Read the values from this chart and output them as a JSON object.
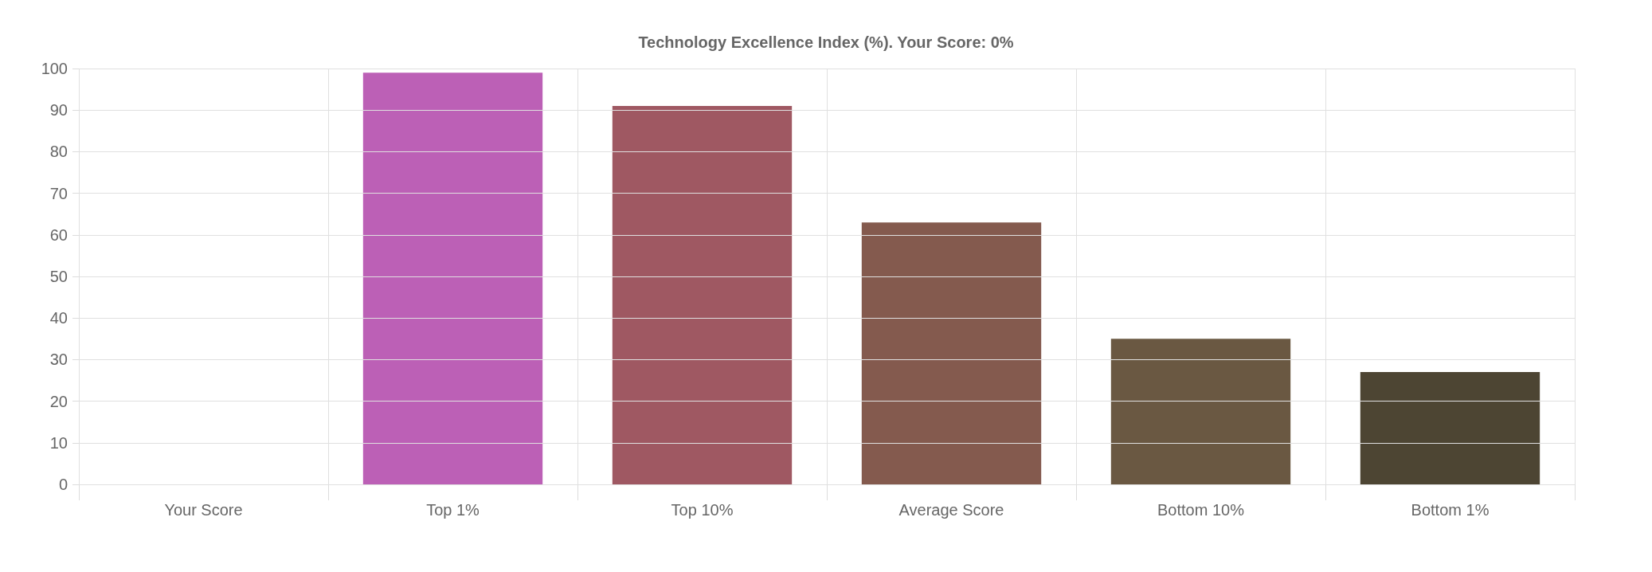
{
  "chart_data": {
    "type": "bar",
    "title": "Technology Excellence Index (%). Your Score: 0%",
    "categories": [
      "Your Score",
      "Top 1%",
      "Top 10%",
      "Average Score",
      "Bottom 10%",
      "Bottom 1%"
    ],
    "values": [
      0,
      99,
      91,
      63,
      35,
      27
    ],
    "colors": [
      "#c75fb0",
      "#bc60b6",
      "#9f5862",
      "#845a4e",
      "#6a5842",
      "#4d4533"
    ],
    "ylim": [
      0,
      100
    ],
    "yticks": [
      0,
      10,
      20,
      30,
      40,
      50,
      60,
      70,
      80,
      90,
      100
    ],
    "grid": true
  }
}
